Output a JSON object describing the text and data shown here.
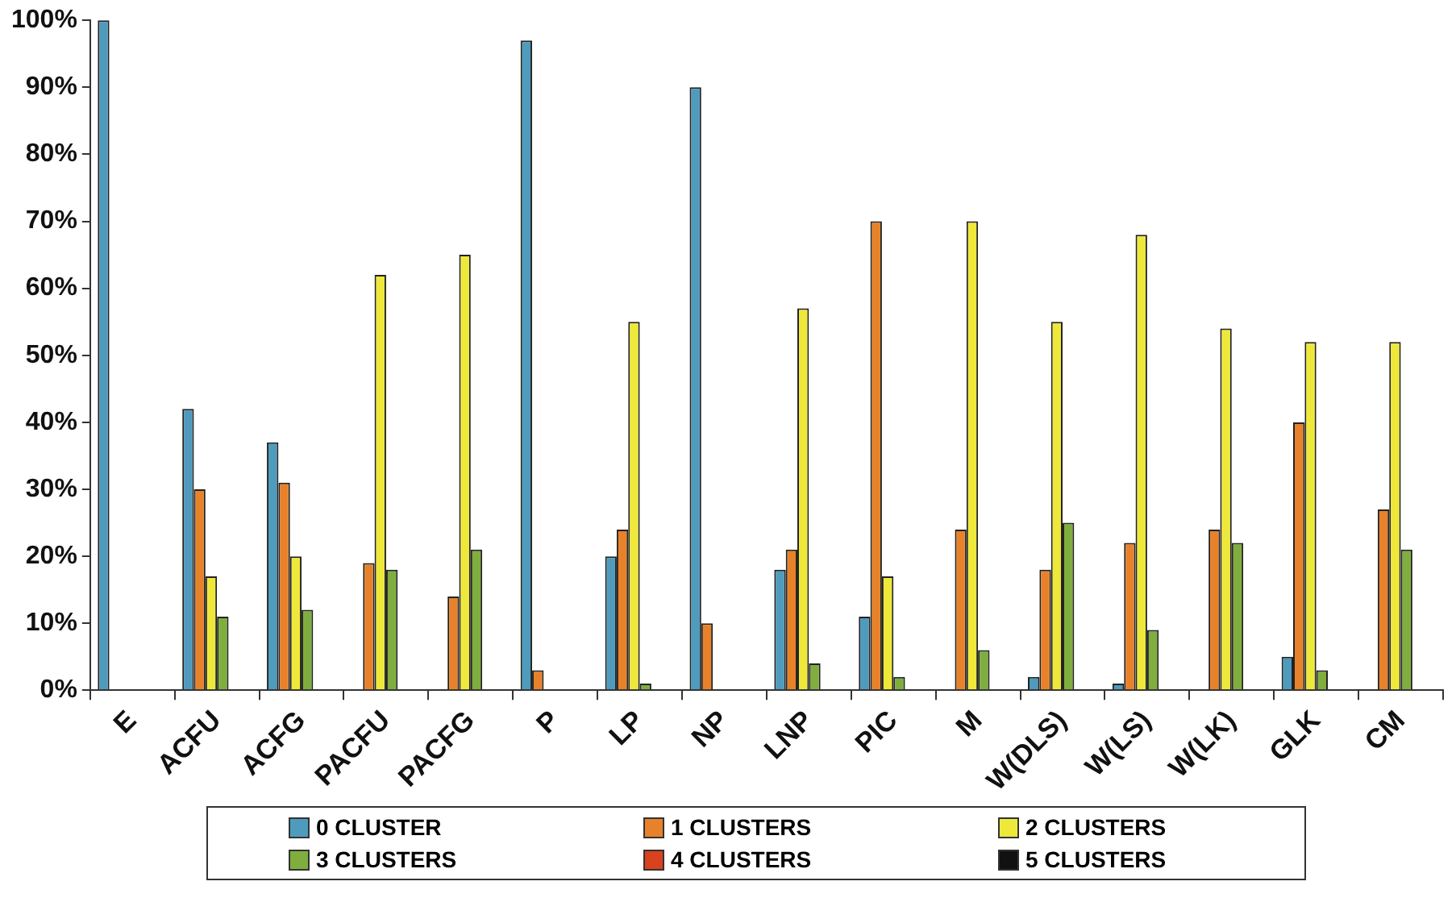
{
  "chart_data": {
    "type": "bar",
    "categories": [
      "E",
      "ACFU",
      "ACFG",
      "PACFU",
      "PACFG",
      "P",
      "LP",
      "NP",
      "LNP",
      "PIC",
      "M",
      "W(DLS)",
      "W(LS)",
      "W(LK)",
      "GLK",
      "CM"
    ],
    "series": [
      {
        "name": "0 CLUSTER",
        "color": "#4f9bbd",
        "values": [
          100,
          42,
          37,
          0,
          0,
          97,
          20,
          90,
          18,
          11,
          0,
          2,
          1,
          0,
          5,
          0
        ]
      },
      {
        "name": "1 CLUSTERS",
        "color": "#e8822a",
        "values": [
          0,
          30,
          31,
          19,
          14,
          3,
          24,
          10,
          21,
          70,
          24,
          18,
          22,
          24,
          40,
          27
        ]
      },
      {
        "name": "2 CLUSTERS",
        "color": "#eee83a",
        "values": [
          0,
          17,
          20,
          62,
          65,
          0,
          55,
          0,
          57,
          17,
          70,
          55,
          68,
          54,
          52,
          52
        ]
      },
      {
        "name": "3 CLUSTERS",
        "color": "#7fae3e",
        "values": [
          0,
          11,
          12,
          18,
          21,
          0,
          1,
          0,
          4,
          2,
          6,
          25,
          9,
          22,
          3,
          21
        ]
      },
      {
        "name": "4 CLUSTERS",
        "color": "#d9421e",
        "values": [
          0,
          0,
          0,
          0,
          0,
          0,
          0,
          0,
          0,
          0,
          0,
          0,
          0,
          0,
          0,
          0
        ]
      },
      {
        "name": "5 CLUSTERS",
        "color": "#111111",
        "values": [
          0,
          0,
          0,
          0,
          0,
          0,
          0,
          0,
          0,
          0,
          0,
          0,
          0,
          0,
          0,
          0
        ]
      }
    ],
    "ylim": [
      0,
      100
    ],
    "yticks": [
      {
        "value": 0,
        "label": "0%"
      },
      {
        "value": 10,
        "label": "10%"
      },
      {
        "value": 20,
        "label": "20%"
      },
      {
        "value": 30,
        "label": "30%"
      },
      {
        "value": 40,
        "label": "40%"
      },
      {
        "value": 50,
        "label": "50%"
      },
      {
        "value": 60,
        "label": "60%"
      },
      {
        "value": 70,
        "label": "70%"
      },
      {
        "value": 80,
        "label": "80%"
      },
      {
        "value": 90,
        "label": "90%"
      },
      {
        "value": 100,
        "label": "100%"
      }
    ],
    "grid": false,
    "legend": "bottom"
  }
}
